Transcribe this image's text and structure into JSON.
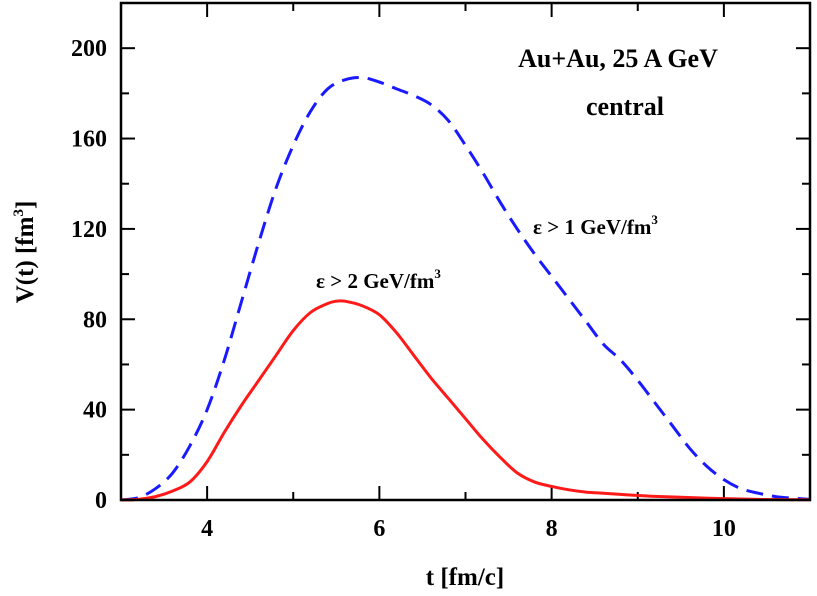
{
  "chart_data": {
    "type": "line",
    "title": "",
    "annotation_lines": [
      "Au+Au,  25 A GeV",
      "central"
    ],
    "xlabel": "t [fm/c]",
    "ylabel": {
      "main": "V(t) [fm",
      "sup": "3",
      "close": "]"
    },
    "xlim": [
      3,
      11
    ],
    "ylim": [
      0,
      220
    ],
    "xticks_major": [
      4,
      6,
      8,
      10
    ],
    "yticks_major": [
      0,
      40,
      80,
      120,
      160,
      200
    ],
    "grid": false,
    "colors": {
      "dashed": "#1a1aff",
      "solid": "#ff1a1a",
      "axes": "#000000"
    },
    "series": [
      {
        "name": "ε > 1 GeV/fm3",
        "label_main": "ε > 1 GeV/fm",
        "label_sup": "3",
        "style": "dashed",
        "color": "#1a1aff",
        "x": [
          3.0,
          3.2,
          3.4,
          3.6,
          3.8,
          4.0,
          4.2,
          4.4,
          4.6,
          4.8,
          5.0,
          5.2,
          5.4,
          5.6,
          5.8,
          6.0,
          6.2,
          6.4,
          6.6,
          6.8,
          7.0,
          7.2,
          7.4,
          7.6,
          7.8,
          8.0,
          8.2,
          8.4,
          8.6,
          8.8,
          9.0,
          9.2,
          9.4,
          9.6,
          9.8,
          10.0,
          10.2,
          10.4,
          10.6,
          10.8,
          11.0
        ],
        "y": [
          0,
          1,
          5,
          12,
          24,
          40,
          62,
          88,
          114,
          138,
          157,
          172,
          182,
          186,
          187,
          185,
          182,
          179,
          175,
          168,
          157,
          145,
          132,
          120,
          109,
          99,
          89,
          79,
          69,
          62,
          53,
          43,
          33,
          23,
          15,
          9,
          5,
          3,
          1.5,
          0.8,
          0.3
        ]
      },
      {
        "name": "ε > 2 GeV/fm3",
        "label_main": "ε > 2 GeV/fm",
        "label_sup": "3",
        "style": "solid",
        "color": "#ff1a1a",
        "x": [
          3.0,
          3.2,
          3.4,
          3.6,
          3.8,
          4.0,
          4.2,
          4.4,
          4.6,
          4.8,
          5.0,
          5.2,
          5.4,
          5.5,
          5.6,
          5.8,
          6.0,
          6.2,
          6.4,
          6.6,
          6.8,
          7.0,
          7.2,
          7.4,
          7.6,
          7.8,
          8.0,
          8.2,
          8.4,
          8.6,
          8.8,
          9.0,
          9.2,
          9.5,
          10.0,
          10.5,
          11.0
        ],
        "y": [
          0,
          0.3,
          1.5,
          4,
          8,
          17,
          30,
          42,
          53,
          64,
          75,
          83,
          87,
          88,
          88,
          86,
          82,
          74,
          64,
          54,
          45,
          36,
          27,
          19,
          12,
          8,
          6,
          4.5,
          3.5,
          3,
          2.5,
          2,
          1.6,
          1.2,
          0.6,
          0.2,
          0.1
        ]
      }
    ]
  }
}
